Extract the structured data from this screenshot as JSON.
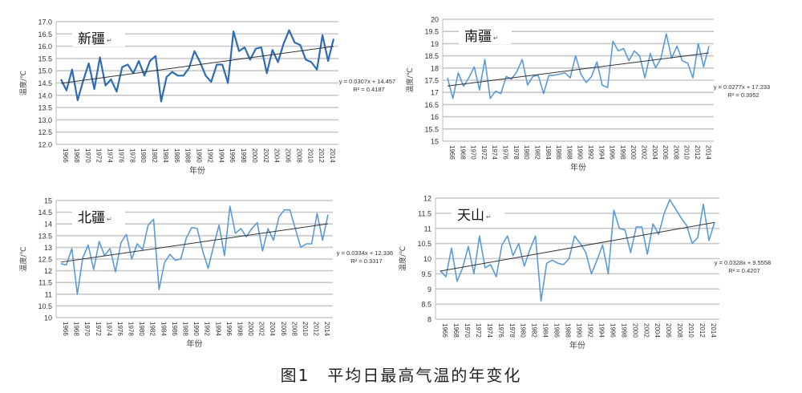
{
  "caption": {
    "number": "图1",
    "text": "平均日最高气温的年变化"
  },
  "chart_data": [
    {
      "type": "line",
      "title": "新疆",
      "xlabel": "年份",
      "ylabel": "温度/℃",
      "ylim": [
        12.0,
        17.0
      ],
      "ystep": 0.5,
      "ytick_decimals": 1,
      "x_start": 1966,
      "x_end": 2015,
      "xtick_labels": [
        "1966",
        "1968",
        "1970",
        "1972",
        "1974",
        "1976",
        "1978",
        "1980",
        "1982",
        "1984",
        "1986",
        "1988",
        "1990",
        "1992",
        "1994",
        "1996",
        "1998",
        "2000",
        "2002",
        "2004",
        "2006",
        "2008",
        "2010",
        "2012",
        "2014"
      ],
      "line_color": "#2e6db4",
      "values": [
        14.65,
        14.2,
        15.05,
        13.8,
        14.6,
        15.3,
        14.25,
        15.55,
        14.4,
        14.65,
        14.15,
        15.15,
        15.25,
        14.9,
        15.4,
        14.8,
        15.4,
        15.6,
        13.75,
        14.75,
        14.95,
        14.8,
        14.8,
        15.1,
        15.8,
        15.35,
        14.8,
        14.55,
        15.25,
        15.25,
        14.5,
        16.6,
        15.8,
        15.95,
        15.45,
        15.9,
        15.95,
        14.9,
        15.85,
        15.35,
        16.1,
        16.65,
        16.15,
        16.05,
        15.45,
        15.35,
        15.05,
        16.45,
        15.4,
        16.3
      ],
      "trend": {
        "slope": 0.0307,
        "intercept": 14.457,
        "equation": "y = 0.0307x + 14.457",
        "r2": "R² = 0.4187"
      }
    },
    {
      "type": "line",
      "title": "南疆",
      "xlabel": "年份",
      "ylabel": "温度/℃",
      "ylim": [
        15,
        20
      ],
      "ystep": 0.5,
      "ytick_decimals": 0,
      "x_start": 1966,
      "x_end": 2015,
      "xtick_labels": [
        "1966",
        "1968",
        "1970",
        "1972",
        "1974",
        "1976",
        "1978",
        "1980",
        "1982",
        "1984",
        "1986",
        "1988",
        "1990",
        "1992",
        "1994",
        "1996",
        "1998",
        "2000",
        "2002",
        "2004",
        "2006",
        "2008",
        "2010",
        "2012",
        "2014"
      ],
      "line_color": "#5b9bd5",
      "values": [
        17.6,
        16.75,
        17.8,
        17.25,
        17.6,
        18.05,
        17.1,
        18.35,
        16.75,
        17.05,
        16.95,
        17.65,
        17.55,
        17.85,
        18.35,
        17.3,
        17.65,
        17.7,
        16.95,
        17.7,
        17.7,
        17.75,
        17.8,
        17.6,
        18.5,
        17.75,
        17.4,
        17.65,
        18.25,
        17.3,
        17.2,
        19.1,
        18.7,
        18.8,
        18.3,
        18.7,
        18.5,
        17.6,
        18.6,
        18.0,
        18.4,
        19.4,
        18.4,
        18.9,
        18.3,
        18.2,
        17.6,
        19.0,
        18.05,
        18.9
      ],
      "trend": {
        "slope": 0.0277,
        "intercept": 17.233,
        "equation": "y = 0.0277x + 17.233",
        "r2": "R² = 0.3952"
      }
    },
    {
      "type": "line",
      "title": "北疆",
      "xlabel": "年份",
      "ylabel": "温度/℃",
      "ylim": [
        10,
        15
      ],
      "ystep": 0.5,
      "ytick_decimals": 0,
      "x_start": 1966,
      "x_end": 2015,
      "xtick_labels": [
        "1966",
        "1968",
        "1970",
        "1972",
        "1974",
        "1976",
        "1978",
        "1980",
        "1982",
        "1984",
        "1986",
        "1988",
        "1990",
        "1992",
        "1994",
        "1996",
        "1998",
        "2000",
        "2002",
        "2004",
        "2006",
        "2008",
        "2010",
        "2012",
        "2014"
      ],
      "line_color": "#5b9bd5",
      "values": [
        12.3,
        12.25,
        12.95,
        11.0,
        12.55,
        13.1,
        12.05,
        13.25,
        12.65,
        12.95,
        11.95,
        13.2,
        13.55,
        12.5,
        13.15,
        12.9,
        13.95,
        14.2,
        11.2,
        12.35,
        12.7,
        12.45,
        12.5,
        13.4,
        13.85,
        13.8,
        12.85,
        12.1,
        13.05,
        13.95,
        12.65,
        14.75,
        13.6,
        13.8,
        13.45,
        13.8,
        14.05,
        12.85,
        13.8,
        13.3,
        14.3,
        14.6,
        14.6,
        13.8,
        13.0,
        13.15,
        13.15,
        14.45,
        13.3,
        14.4
      ],
      "trend": {
        "slope": 0.0334,
        "intercept": 12.336,
        "equation": "y = 0.0334x + 12.336",
        "r2": "R² = 0.3317"
      }
    },
    {
      "type": "line",
      "title": "天山",
      "xlabel": "年份",
      "ylabel": "温度/℃",
      "ylim": [
        8,
        12
      ],
      "ystep": 0.5,
      "ytick_decimals": 0,
      "x_start": 1966,
      "x_end": 2015,
      "xtick_labels": [
        "1966",
        "1968",
        "1970",
        "1972",
        "1974",
        "1976",
        "1978",
        "1980",
        "1982",
        "1984",
        "1986",
        "1988",
        "1990",
        "1992",
        "1994",
        "1996",
        "1998",
        "2000",
        "2002",
        "2004",
        "2006",
        "2008",
        "2010",
        "2012",
        "2014"
      ],
      "line_color": "#5b9bd5",
      "values": [
        9.6,
        9.4,
        10.35,
        9.25,
        9.7,
        10.4,
        9.5,
        10.75,
        9.7,
        9.8,
        9.4,
        10.45,
        10.75,
        10.1,
        10.5,
        9.75,
        10.3,
        10.75,
        8.6,
        9.85,
        9.95,
        9.85,
        9.8,
        10.0,
        10.75,
        10.5,
        10.2,
        9.5,
        9.95,
        10.45,
        9.5,
        11.6,
        11.0,
        10.95,
        10.2,
        11.05,
        11.05,
        10.15,
        11.15,
        10.8,
        11.5,
        11.95,
        11.65,
        11.35,
        11.1,
        10.5,
        10.7,
        11.8,
        10.6,
        11.2
      ],
      "trend": {
        "slope": 0.0328,
        "intercept": 9.5558,
        "equation": "y = 0.0328x + 9.5558",
        "r2": "R² = 0.4207"
      }
    }
  ]
}
